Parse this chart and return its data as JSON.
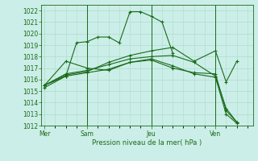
{
  "background_color": "#cceee8",
  "grid_color": "#aaddcc",
  "line_color": "#1a6b1a",
  "marker_color": "#1a6b1a",
  "xlabel_text": "Pression niveau de la mer( hPa )",
  "ylim": [
    1012,
    1022.5
  ],
  "yticks": [
    1012,
    1013,
    1014,
    1015,
    1016,
    1017,
    1018,
    1019,
    1020,
    1021,
    1022
  ],
  "xtick_labels": [
    "Mer",
    "Sam",
    "Jeu",
    "Ven"
  ],
  "xtick_positions": [
    0,
    4,
    10,
    16
  ],
  "vlines": [
    4,
    10,
    16
  ],
  "xlim": [
    -0.3,
    19.5
  ],
  "series": [
    {
      "x": [
        0,
        2,
        3,
        4,
        5,
        6,
        7,
        8,
        9,
        10,
        11,
        12
      ],
      "y": [
        1015.3,
        1016.3,
        1019.2,
        1019.3,
        1019.7,
        1019.7,
        1019.2,
        1021.9,
        1021.9,
        1021.5,
        1021.0,
        1018.3
      ]
    },
    {
      "x": [
        0,
        2,
        4,
        6,
        8,
        10,
        12,
        14,
        16,
        17,
        18
      ],
      "y": [
        1015.5,
        1016.4,
        1016.7,
        1017.5,
        1018.1,
        1018.5,
        1018.8,
        1017.6,
        1018.5,
        1015.8,
        1017.6
      ]
    },
    {
      "x": [
        0,
        2,
        4,
        6,
        8,
        10,
        12,
        14,
        16,
        17,
        18
      ],
      "y": [
        1015.5,
        1016.5,
        1016.8,
        1017.3,
        1017.8,
        1018.0,
        1018.1,
        1017.5,
        1016.3,
        1013.5,
        1012.3
      ]
    },
    {
      "x": [
        0,
        2,
        4,
        6,
        8,
        10,
        12,
        14,
        16,
        17,
        18
      ],
      "y": [
        1015.5,
        1017.6,
        1017.0,
        1016.8,
        1017.5,
        1017.7,
        1017.0,
        1016.6,
        1016.5,
        1013.3,
        1012.3
      ]
    },
    {
      "x": [
        0,
        2,
        4,
        6,
        8,
        10,
        12,
        14,
        16,
        17,
        18
      ],
      "y": [
        1015.5,
        1016.3,
        1016.6,
        1016.9,
        1017.5,
        1017.8,
        1017.2,
        1016.5,
        1016.2,
        1013.0,
        1012.2
      ]
    }
  ]
}
